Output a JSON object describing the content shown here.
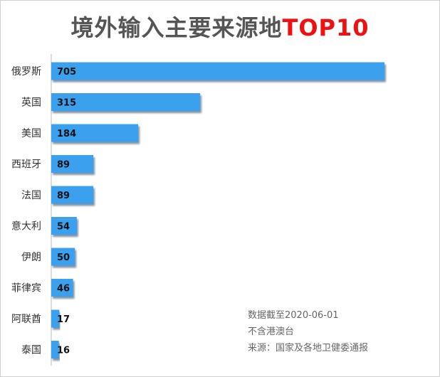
{
  "title": {
    "main": "境外输入主要来源地",
    "highlight": "TOP10",
    "main_color": "#555555",
    "highlight_color": "#ee1111"
  },
  "notes": {
    "date": "数据截至2020-06-01",
    "scope": "不含港澳台",
    "source": "来源：国家及各地卫健委通报"
  },
  "colors": {
    "bar": "#3aa0ee",
    "bar_shadow": "#5a6f82",
    "axis": "#bbbbbb",
    "label": "#333333",
    "value_label": "#111111"
  },
  "chart_data": {
    "type": "bar",
    "orientation": "horizontal",
    "categories": [
      "俄罗斯",
      "英国",
      "美国",
      "西班牙",
      "法国",
      "意大利",
      "伊朗",
      "菲律宾",
      "阿联酋",
      "泰国"
    ],
    "values": [
      705,
      315,
      184,
      89,
      89,
      54,
      50,
      46,
      17,
      16
    ],
    "title": "境外输入主要来源地TOP10",
    "xlim": [
      0,
      705
    ],
    "grid": false,
    "legend": "none"
  }
}
